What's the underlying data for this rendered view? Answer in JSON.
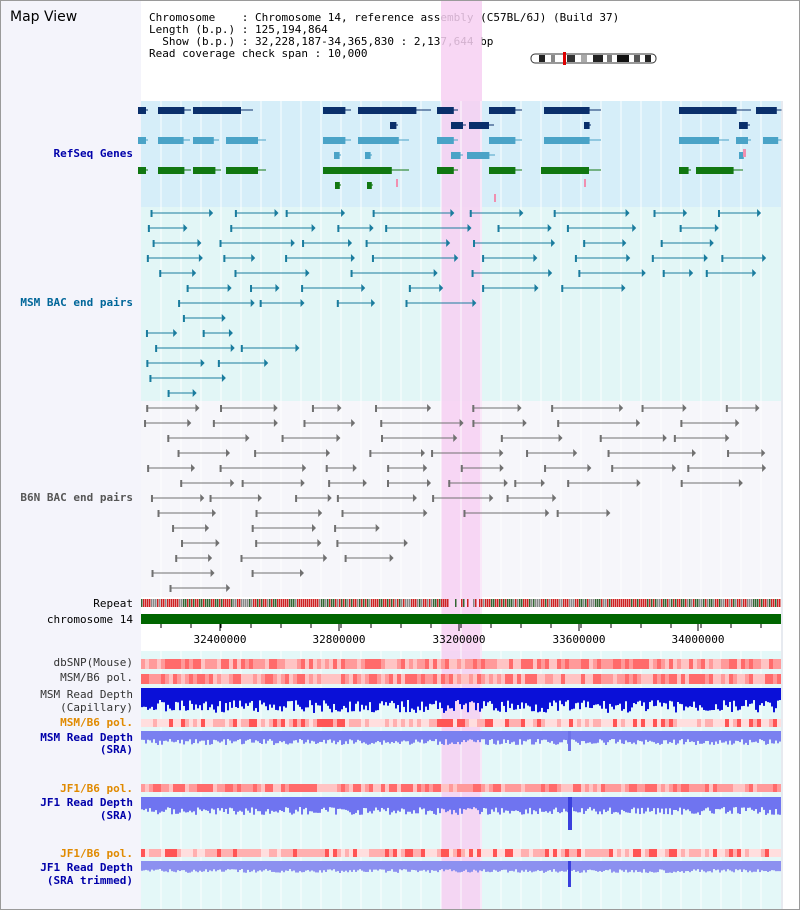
{
  "window": {
    "title": "Map View"
  },
  "info": {
    "line1": "Chromosome    : Chromosome 14, reference assembly (C57BL/6J) (Build 37)",
    "line2": "Length (b.p.) : 125,194,864",
    "line3": "  Show (b.p.) : 32,228,187-34,365,830 : 2,137,644 bp",
    "line4": "Read coverage check span : 10,000"
  },
  "tracks": {
    "refseq": {
      "label": "RefSeq Genes",
      "color": "#0000aa"
    },
    "msm_bac": {
      "label": "MSM BAC end pairs",
      "color": "#006699"
    },
    "b6n_bac": {
      "label": "B6N BAC end pairs",
      "color": "#555555"
    },
    "repeat": {
      "label": "Repeat",
      "color": "#000000"
    },
    "chromosome": {
      "label": "chromosome 14",
      "color": "#000000"
    },
    "dbsnp": {
      "label": "dbSNP(Mouse)",
      "color": "#333333"
    },
    "msm_b6_pol": {
      "label": "MSM/B6 pol.",
      "color": "#333333"
    },
    "msm_read_cap_1": {
      "label": "MSM Read Depth",
      "color": "#333333"
    },
    "msm_read_cap_2": {
      "label": "(Capillary)",
      "color": "#333333"
    },
    "msm_b6_pol_sra": {
      "label": "MSM/B6 pol.",
      "color": "#e08a00"
    },
    "msm_read_sra_1": {
      "label": "MSM Read Depth",
      "color": "#0000aa"
    },
    "msm_read_sra_2": {
      "label": "(SRA)",
      "color": "#0000aa"
    },
    "jf1_b6_pol": {
      "label": "JF1/B6 pol.",
      "color": "#e08a00"
    },
    "jf1_read_sra_1": {
      "label": "JF1 Read Depth",
      "color": "#0000aa"
    },
    "jf1_read_sra_2": {
      "label": "(SRA)",
      "color": "#0000aa"
    },
    "jf1_b6_pol_trim": {
      "label": "JF1/B6 pol.",
      "color": "#e08a00"
    },
    "jf1_read_trim_1": {
      "label": "JF1 Read Depth",
      "color": "#0000aa"
    },
    "jf1_read_trim_2": {
      "label": "(SRA trimmed)",
      "color": "#0000aa"
    }
  },
  "axis": {
    "ticks": [
      "32400000",
      "32800000",
      "33200000",
      "33600000",
      "34000000"
    ]
  },
  "colors": {
    "refseq_bg": "#d6eef9",
    "msm_bg": "#e2f6f6",
    "b6n_bg": "#f6f6fa",
    "highlight": "#f7d0f2",
    "chrom_green": "#006600",
    "depth_blue": "#0000dd"
  }
}
